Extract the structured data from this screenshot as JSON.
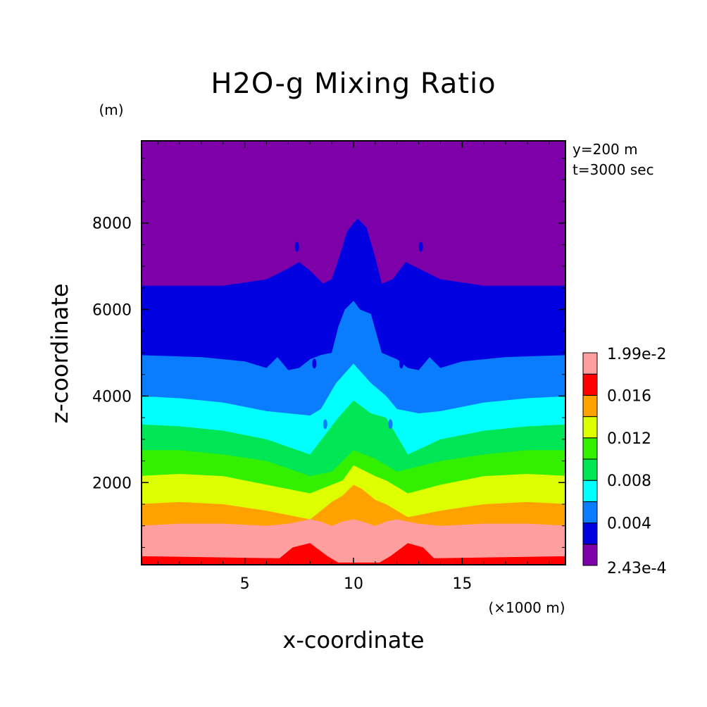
{
  "chart_data": {
    "type": "heatmap",
    "title": "H2O-g Mixing Ratio",
    "xlabel": "x-coordinate",
    "ylabel": "z-coordinate",
    "x_unit": "(×1000 m)",
    "y_unit": "(m)",
    "annotations": [
      "y=200 m",
      "t=3000 sec"
    ],
    "xlim": [
      0.25,
      19.75
    ],
    "ylim": [
      100,
      9900
    ],
    "x_ticks": [
      5,
      10,
      15
    ],
    "y_ticks": [
      2000,
      4000,
      6000,
      8000
    ],
    "colorbar": {
      "max_label": "1.99e-2",
      "min_label": "2.43e-4",
      "tick_labels": [
        "0.016",
        "0.012",
        "0.008",
        "0.004"
      ],
      "levels": [
        0.000243,
        0.002,
        0.004,
        0.006,
        0.008,
        0.01,
        0.012,
        0.014,
        0.016,
        0.018,
        0.0199
      ],
      "colors": [
        "#7d00a8",
        "#0000e0",
        "#0a7dff",
        "#00ffff",
        "#00e654",
        "#33f000",
        "#ddff00",
        "#ffa200",
        "#ff0000",
        "#ff9e9e"
      ]
    },
    "contour_boundaries_z_at_edges_m": [
      100,
      1000,
      1500,
      2150,
      2750,
      3350,
      4000,
      4950,
      6550
    ],
    "center_column_x": 10.2,
    "center_plume_top_z_m": 8100
  }
}
